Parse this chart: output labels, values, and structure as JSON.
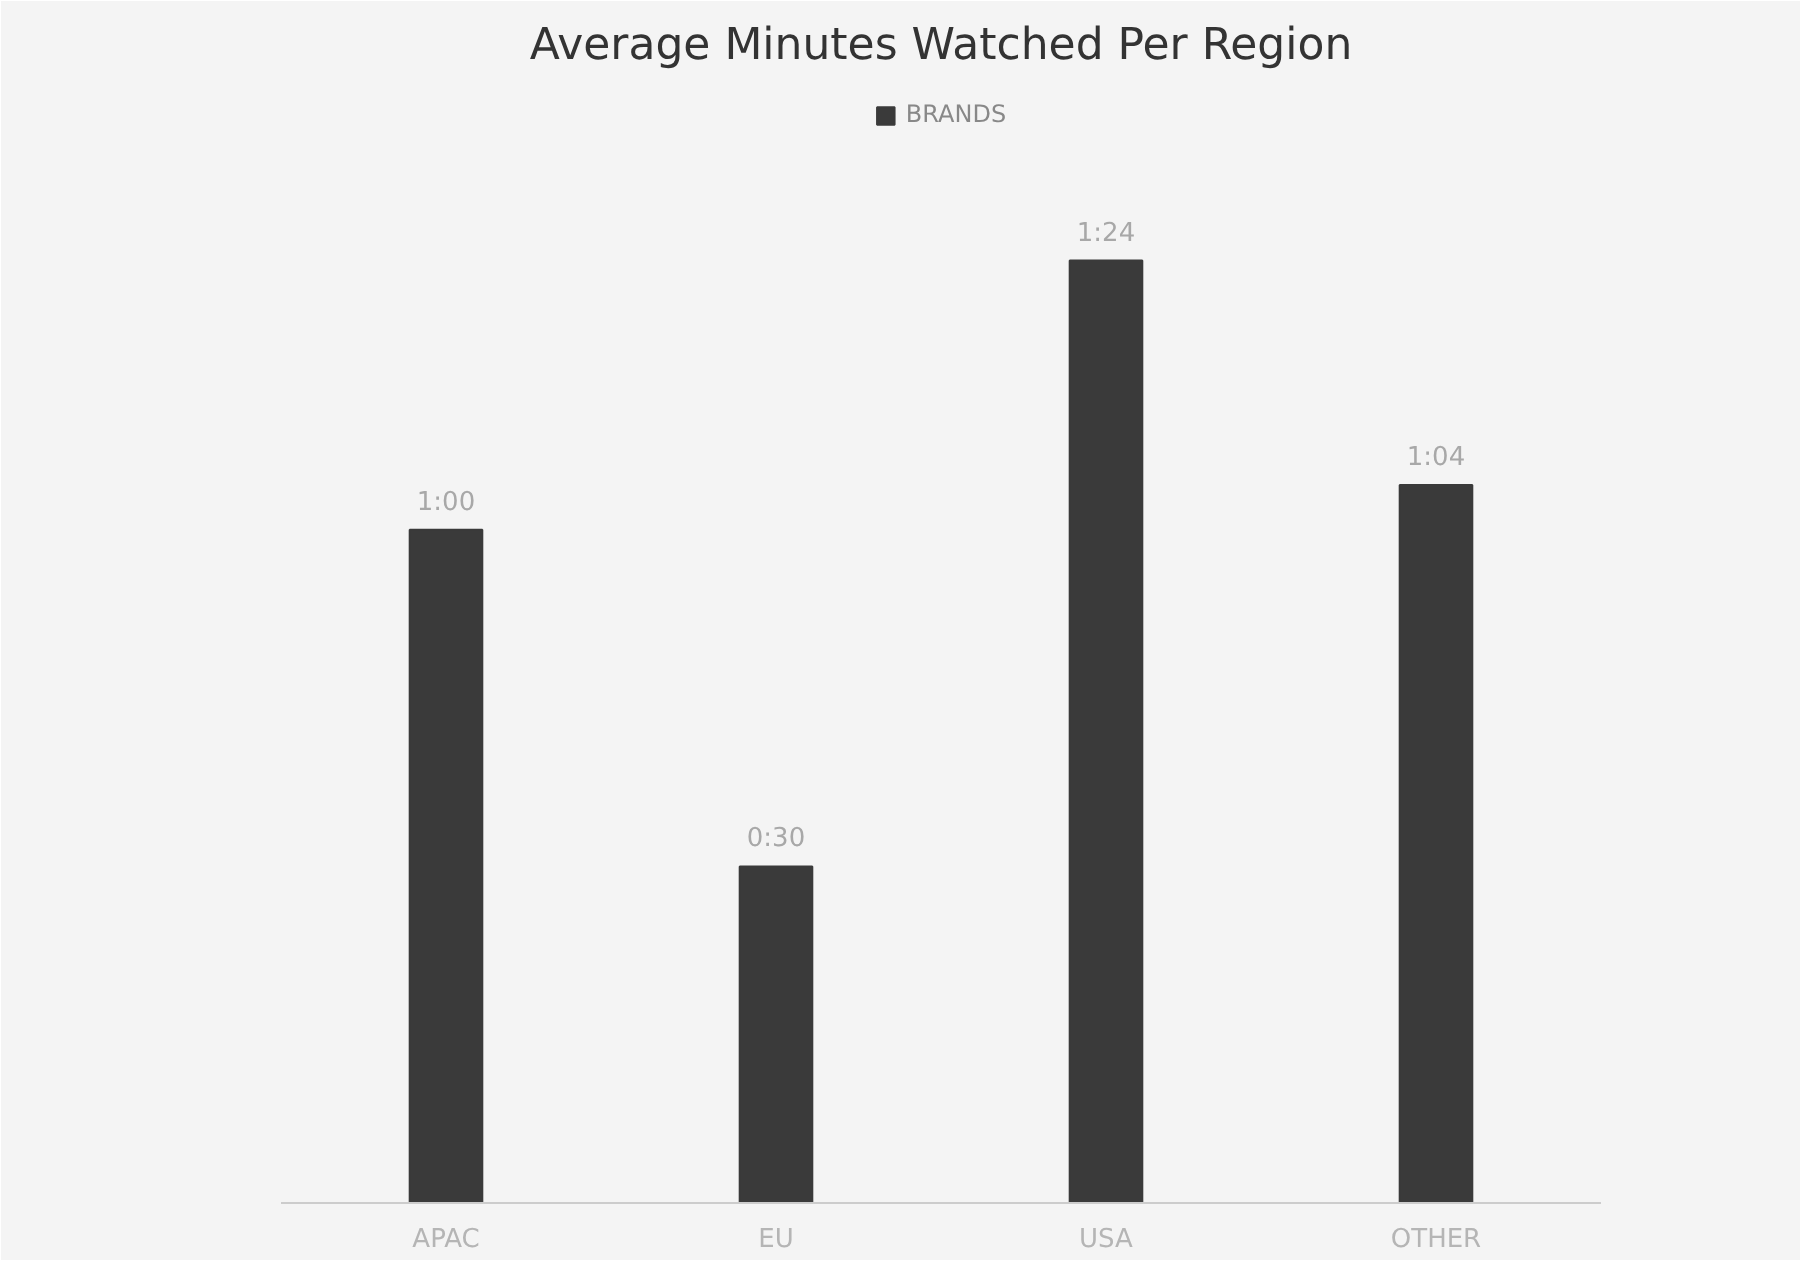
{
  "chart_data": {
    "type": "bar",
    "title": "Average Minutes Watched Per Region",
    "categories": [
      "APAC",
      "EU",
      "USA",
      "OTHER"
    ],
    "series": [
      {
        "name": "BRANDS",
        "color": "#3a3a3a",
        "values": [
          60,
          30,
          84,
          64
        ],
        "value_labels": [
          "1:00",
          "0:30",
          "1:24",
          "1:04"
        ]
      }
    ],
    "ylim": [
      0,
      100
    ],
    "legend": "top",
    "grid": false
  }
}
